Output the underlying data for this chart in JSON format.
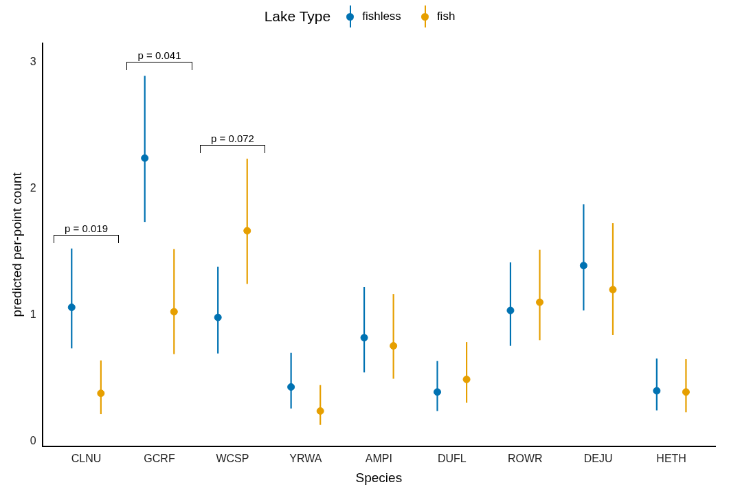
{
  "chart_data": {
    "type": "scatter",
    "xlabel": "Species",
    "ylabel": "predicted per-point count",
    "legend_title": "Lake Type",
    "legend": "top",
    "categories": [
      "CLNU",
      "GCRF",
      "WCSP",
      "YRWA",
      "AMPI",
      "DUFL",
      "ROWR",
      "DEJU",
      "HETH"
    ],
    "series": [
      {
        "name": "fishless",
        "color": "#0072b2",
        "values": [
          1.06,
          2.24,
          0.98,
          0.43,
          0.82,
          0.39,
          1.035,
          1.39,
          0.4
        ],
        "errors": [
          [
            0.735,
            1.525
          ],
          [
            1.735,
            2.89
          ],
          [
            0.695,
            1.38
          ],
          [
            0.26,
            0.7
          ],
          [
            0.545,
            1.22
          ],
          [
            0.24,
            0.635
          ],
          [
            0.755,
            1.415
          ],
          [
            1.035,
            1.875
          ],
          [
            0.245,
            0.655
          ]
        ]
      },
      {
        "name": "fish",
        "color": "#e69f00",
        "values": [
          0.38,
          1.025,
          1.665,
          0.24,
          0.755,
          0.49,
          1.1,
          1.2,
          0.39
        ],
        "errors": [
          [
            0.215,
            0.64
          ],
          [
            0.69,
            1.52
          ],
          [
            1.245,
            2.235
          ],
          [
            0.13,
            0.445
          ],
          [
            0.495,
            1.165
          ],
          [
            0.305,
            0.785
          ],
          [
            0.8,
            1.515
          ],
          [
            0.84,
            1.725
          ],
          [
            0.23,
            0.65
          ]
        ]
      }
    ],
    "marker": "circle",
    "ylim": [
      -0.04,
      3.15
    ],
    "yticks": [
      0,
      1,
      2,
      3
    ],
    "grid": false,
    "annotations": [
      "p = 0.019",
      "p = 0.041",
      "p = 0.072"
    ]
  }
}
